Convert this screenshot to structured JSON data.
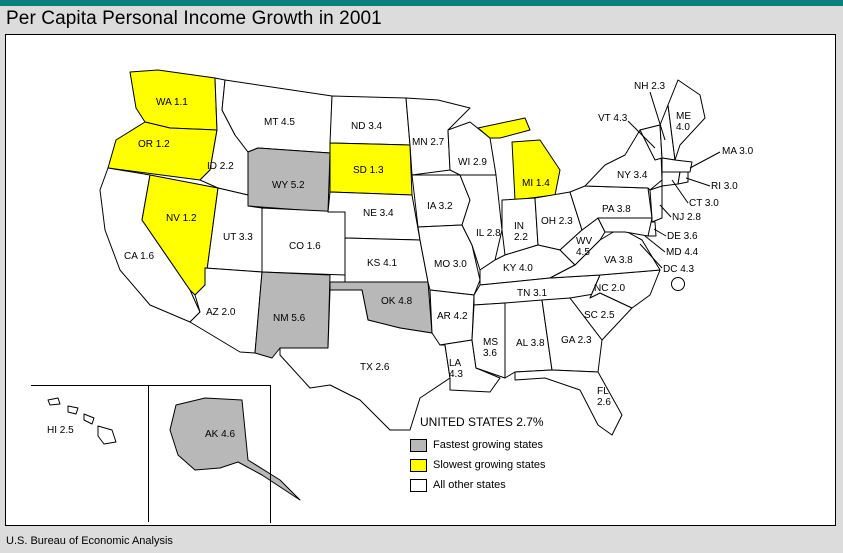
{
  "title": "Per Capita Personal Income Growth in 2001",
  "source": "U.S. Bureau of Economic Analysis",
  "us_total": "UNITED STATES 2.7%",
  "colors": {
    "fastest": "#b8b8b8",
    "slowest": "#ffff00",
    "other": "#ffffff",
    "topbar": "#0c7f7f"
  },
  "legend": {
    "fastest": "Fastest growing states",
    "slowest": "Slowest growing states",
    "other": "All other states"
  },
  "states": [
    {
      "label": "WA 1.1",
      "category": "slowest"
    },
    {
      "label": "OR 1.2",
      "category": "slowest"
    },
    {
      "label": "CA 1.6",
      "category": "other"
    },
    {
      "label": "NV 1.2",
      "category": "slowest"
    },
    {
      "label": "ID 2.2",
      "category": "other"
    },
    {
      "label": "MT 4.5",
      "category": "other"
    },
    {
      "label": "WY 5.2",
      "category": "fastest"
    },
    {
      "label": "UT 3.3",
      "category": "other"
    },
    {
      "label": "AZ 2.0",
      "category": "other"
    },
    {
      "label": "CO 1.6",
      "category": "other"
    },
    {
      "label": "NM 5.6",
      "category": "fastest"
    },
    {
      "label": "ND 3.4",
      "category": "other"
    },
    {
      "label": "SD 1.3",
      "category": "slowest"
    },
    {
      "label": "NE 3.4",
      "category": "other"
    },
    {
      "label": "KS 4.1",
      "category": "other"
    },
    {
      "label": "OK 4.8",
      "category": "fastest"
    },
    {
      "label": "TX 2.6",
      "category": "other"
    },
    {
      "label": "MN 2.7",
      "category": "other"
    },
    {
      "label": "IA 3.2",
      "category": "other"
    },
    {
      "label": "MO 3.0",
      "category": "other"
    },
    {
      "label": "AR 4.2",
      "category": "other"
    },
    {
      "label": "LA 4.3",
      "category": "other"
    },
    {
      "label": "WI 2.9",
      "category": "other"
    },
    {
      "label": "IL 2.8",
      "category": "other"
    },
    {
      "label": "MI 1.4",
      "category": "slowest"
    },
    {
      "label": "IN 2.2",
      "category": "other"
    },
    {
      "label": "OH 2.3",
      "category": "other"
    },
    {
      "label": "KY 4.0",
      "category": "other"
    },
    {
      "label": "TN 3.1",
      "category": "other"
    },
    {
      "label": "MS 3.6",
      "category": "other"
    },
    {
      "label": "AL 3.8",
      "category": "other"
    },
    {
      "label": "GA 2.3",
      "category": "other"
    },
    {
      "label": "FL 2.6",
      "category": "other"
    },
    {
      "label": "SC 2.5",
      "category": "other"
    },
    {
      "label": "NC 2.0",
      "category": "other"
    },
    {
      "label": "VA 3.8",
      "category": "other"
    },
    {
      "label": "WV 4.5",
      "category": "other"
    },
    {
      "label": "PA 3.8",
      "category": "other"
    },
    {
      "label": "NY 3.4",
      "category": "other"
    },
    {
      "label": "VT 4.3",
      "category": "other"
    },
    {
      "label": "NH 2.3",
      "category": "other"
    },
    {
      "label": "ME 4.0",
      "category": "other"
    },
    {
      "label": "MA 3.0",
      "category": "other"
    },
    {
      "label": "RI 3.0",
      "category": "other"
    },
    {
      "label": "CT 3.0",
      "category": "other"
    },
    {
      "label": "NJ 2.8",
      "category": "other"
    },
    {
      "label": "DE 3.6",
      "category": "other"
    },
    {
      "label": "MD 4.4",
      "category": "other"
    },
    {
      "label": "DC 4.3",
      "category": "other"
    },
    {
      "label": "HI 2.5",
      "category": "other"
    },
    {
      "label": "AK 4.6",
      "category": "fastest"
    }
  ]
}
